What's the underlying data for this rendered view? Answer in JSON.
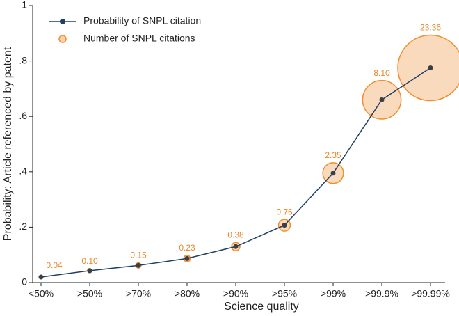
{
  "chart_data": {
    "type": "line",
    "x_label": "Science quality",
    "y_label": "Probability: Article referenced by patent",
    "categories": [
      "<50%",
      ">50%",
      ">70%",
      ">80%",
      ">90%",
      ">95%",
      ">99%",
      ">99.9%",
      ">99.99%"
    ],
    "series": [
      {
        "name": "Probability of SNPL citation",
        "color": "#1f3f66",
        "values": [
          0.02,
          0.043,
          0.062,
          0.087,
          0.13,
          0.207,
          0.395,
          0.66,
          0.775
        ]
      },
      {
        "name": "Number of SNPL citations",
        "color": "#f28e2b",
        "values": [
          0.04,
          0.1,
          0.15,
          0.23,
          0.38,
          0.76,
          2.35,
          8.1,
          23.36
        ],
        "value_labels": [
          "0.04",
          "0.10",
          "0.15",
          "0.23",
          "0.38",
          "0.76",
          "2.35",
          "8.10",
          "23.36"
        ]
      }
    ],
    "ylim": [
      0,
      1
    ],
    "yticks": [
      0,
      {
        "value": 0.2,
        "label": ".2"
      },
      {
        "value": 0.4,
        "label": ".4"
      },
      {
        "value": 0.6,
        "label": ".6"
      },
      {
        "value": 0.8,
        "label": ".8"
      },
      1
    ],
    "legend": "upper left"
  }
}
